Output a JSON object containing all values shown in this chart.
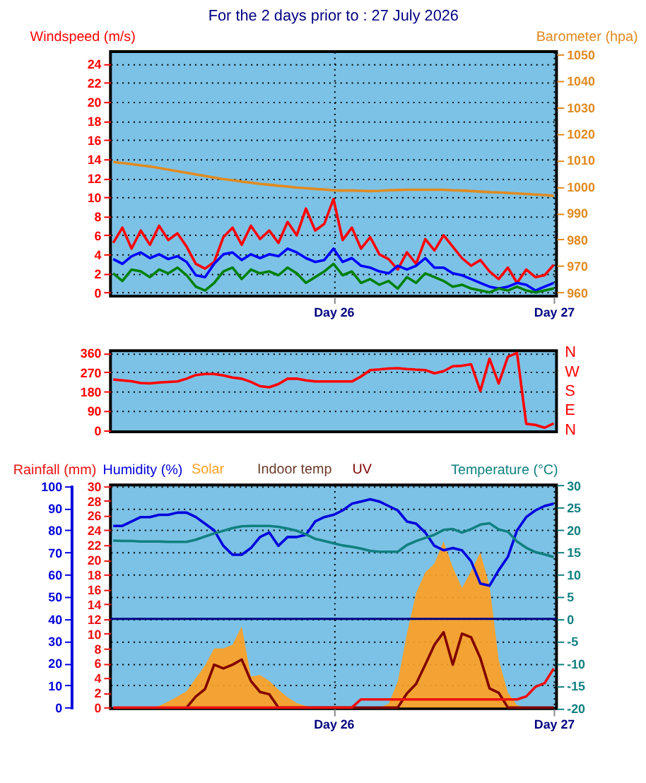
{
  "chart_data": [
    {
      "type": "line",
      "title": "For the 2 days prior to : 27 July 2026",
      "ylabel": "Windspeed (m/s)",
      "y2label": "Barometer (hpa)",
      "categories": [
        null,
        null,
        null,
        null,
        null,
        null,
        null,
        null,
        null,
        null,
        null,
        null,
        null,
        null,
        null,
        null,
        null,
        null,
        null,
        null,
        null,
        null,
        null,
        null,
        "Day 26",
        null,
        null,
        null,
        null,
        null,
        null,
        null,
        null,
        null,
        null,
        null,
        null,
        null,
        null,
        null,
        null,
        null,
        null,
        null,
        null,
        null,
        null,
        null,
        "Day 27"
      ],
      "ylim": [
        -0.4,
        25.3
      ],
      "yticks": [
        0,
        2,
        4,
        6,
        8,
        10,
        12,
        14,
        16,
        18,
        20,
        22,
        24
      ],
      "y2lim": [
        958.6,
        1051
      ],
      "y2ticks": [
        960,
        970,
        980,
        990,
        1000,
        1010,
        1020,
        1030,
        1040,
        1050
      ],
      "grid": true,
      "series": [
        {
          "color": "#ff0000",
          "values": [
            5.2,
            6.8,
            4.6,
            6.5,
            5.0,
            7.0,
            5.5,
            6.2,
            4.8,
            3.0,
            2.5,
            3.2,
            5.8,
            6.8,
            5.0,
            7.0,
            5.6,
            6.5,
            5.2,
            7.4,
            6.0,
            8.8,
            6.5,
            7.2,
            9.8,
            5.5,
            6.8,
            4.6,
            5.8,
            4.0,
            3.5,
            2.4,
            4.2,
            3.0,
            5.6,
            4.4,
            6.0,
            4.8,
            3.6,
            2.8,
            3.4,
            2.2,
            1.4,
            2.6,
            1.0,
            2.4,
            1.6,
            1.8,
            2.9
          ]
        },
        {
          "color": "#0000ff",
          "values": [
            3.5,
            3.0,
            3.8,
            4.2,
            3.6,
            4.0,
            3.5,
            3.8,
            3.2,
            1.8,
            1.6,
            3.0,
            4.0,
            4.2,
            3.4,
            4.0,
            3.6,
            4.0,
            3.8,
            4.6,
            4.2,
            3.6,
            3.2,
            3.4,
            4.6,
            3.2,
            3.6,
            2.8,
            2.6,
            2.2,
            2.0,
            2.8,
            2.4,
            2.8,
            3.6,
            2.6,
            2.6,
            2.0,
            1.8,
            1.4,
            1.0,
            0.6,
            0.4,
            0.6,
            1.0,
            0.8,
            0.2,
            0.6,
            1.0
          ]
        },
        {
          "color": "#008000",
          "values": [
            2.0,
            1.2,
            2.4,
            2.2,
            1.6,
            2.4,
            2.0,
            2.6,
            1.8,
            0.6,
            0.2,
            1.0,
            2.2,
            2.6,
            1.4,
            2.4,
            2.0,
            2.2,
            1.8,
            2.6,
            2.0,
            1.0,
            1.6,
            2.2,
            3.0,
            1.8,
            2.2,
            1.0,
            1.4,
            0.8,
            1.2,
            0.4,
            1.6,
            1.0,
            2.0,
            1.6,
            1.2,
            0.6,
            0.8,
            0.4,
            0.2,
            0.0,
            0.4,
            0.2,
            0.6,
            0.2,
            0.0,
            0.2,
            0.4
          ]
        },
        {
          "color": "#e08a20",
          "axis": "y2",
          "values": [
            1009.3,
            1008.9,
            1008.5,
            1008.0,
            1007.6,
            1007.0,
            1006.4,
            1005.8,
            1005.2,
            1004.6,
            1004.0,
            1003.4,
            1002.8,
            1002.4,
            1001.9,
            1001.5,
            1001.0,
            1000.7,
            1000.3,
            1000.0,
            999.6,
            999.4,
            999.1,
            998.9,
            998.6,
            998.5,
            998.5,
            998.4,
            998.3,
            998.4,
            998.6,
            998.7,
            998.8,
            998.8,
            998.8,
            998.8,
            998.8,
            998.6,
            998.5,
            998.3,
            998.1,
            997.9,
            997.8,
            997.6,
            997.4,
            997.2,
            997.0,
            996.8,
            996.5
          ]
        }
      ]
    },
    {
      "type": "line",
      "categories": [
        null,
        null,
        null,
        null,
        null,
        null,
        null,
        null,
        null,
        null,
        null,
        null,
        null,
        null,
        null,
        null,
        null,
        null,
        null,
        null,
        null,
        null,
        null,
        null,
        null,
        null,
        null,
        null,
        null,
        null,
        null,
        null,
        null,
        null,
        null,
        null,
        null,
        null,
        null,
        null,
        null,
        null,
        null,
        null,
        null,
        null,
        null,
        null,
        null
      ],
      "ylim": [
        -7,
        370
      ],
      "yticks": [
        0,
        90,
        180,
        270,
        360
      ],
      "annotations": [
        "N",
        "W",
        "S",
        "E",
        "N"
      ],
      "grid": "y",
      "tick_labels": "y",
      "series": [
        {
          "color": "#ff0000",
          "values": [
            236,
            232,
            228,
            220,
            218,
            222,
            225,
            227,
            240,
            257,
            262,
            262,
            255,
            245,
            240,
            225,
            205,
            200,
            215,
            240,
            240,
            232,
            227,
            227,
            227,
            227,
            227,
            250,
            280,
            283,
            287,
            289,
            285,
            282,
            280,
            265,
            275,
            298,
            300,
            307,
            183,
            333,
            218,
            342,
            360,
            30,
            25,
            12,
            32
          ]
        }
      ]
    },
    {
      "type": "line",
      "ylabel": "Humidity (%)",
      "y2label": "Temperature (°C)",
      "y3label": "Rainfall (mm)",
      "annotations": [
        "Indoor temp"
      ],
      "categories": [
        null,
        null,
        null,
        null,
        null,
        null,
        null,
        null,
        null,
        null,
        null,
        null,
        null,
        null,
        null,
        null,
        null,
        null,
        null,
        null,
        null,
        null,
        null,
        null,
        "Day 26",
        null,
        null,
        null,
        null,
        null,
        null,
        null,
        null,
        null,
        null,
        null,
        null,
        null,
        null,
        null,
        null,
        null,
        null,
        null,
        null,
        null,
        null,
        null,
        "Day 27"
      ],
      "ylim": [
        -0.5,
        100.5
      ],
      "yticks": [
        0,
        10,
        20,
        30,
        40,
        50,
        60,
        70,
        80,
        90,
        100
      ],
      "y2lim": [
        -20.15,
        30.1
      ],
      "y2ticks": [
        -20,
        -15,
        -10,
        -5,
        0,
        5,
        10,
        15,
        20,
        25,
        30
      ],
      "y3lim": [
        -0.15,
        30.15
      ],
      "y3ticks": [
        0,
        2,
        4,
        6,
        8,
        10,
        12,
        14,
        16,
        18,
        20,
        22,
        24,
        26,
        28,
        30
      ],
      "grid": true,
      "ref_lines": [
        {
          "axis": "y2",
          "value": 0,
          "color": "#000080"
        }
      ],
      "series": [
        {
          "name": "Solar",
          "type": "area",
          "axis": "y3",
          "color": "#ffa020",
          "values": [
            0,
            0,
            0,
            0,
            0,
            0.2,
            0.8,
            1.5,
            2.2,
            4.0,
            5.7,
            8.0,
            8.0,
            8.5,
            11.0,
            4.2,
            4.4,
            3.6,
            2.4,
            1.4,
            0.6,
            0.2,
            0,
            0,
            0,
            0,
            0,
            0,
            0,
            0,
            0.5,
            3.5,
            10.0,
            15.5,
            18.3,
            19.5,
            22.5,
            19.0,
            16.2,
            18.5,
            21.0,
            16.5,
            6.5,
            2.0,
            0.3,
            0,
            0,
            0,
            0
          ]
        },
        {
          "name": "UV",
          "axis": "y3",
          "color": "#800000",
          "values": [
            null,
            null,
            null,
            null,
            null,
            null,
            null,
            null,
            0,
            1.5,
            2.5,
            5.8,
            5.3,
            5.8,
            6.5,
            3.6,
            2.1,
            1.8,
            0,
            0,
            0,
            0,
            0,
            0,
            0,
            0,
            0,
            0,
            0,
            0,
            0,
            0,
            1.9,
            3.2,
            5.8,
            8.5,
            10.2,
            5.8,
            10.0,
            9.5,
            6.7,
            2.6,
            2.0,
            0,
            0,
            0,
            0,
            0,
            0
          ]
        },
        {
          "axis": "y3",
          "color": "#ee1010",
          "values": [
            0,
            0,
            0,
            0,
            0,
            0,
            0,
            0,
            0,
            0,
            0,
            0,
            0,
            0,
            0,
            0,
            0,
            0,
            0,
            0,
            0,
            0,
            0,
            0,
            0,
            0,
            0,
            1.1,
            1.1,
            1.1,
            1.1,
            1.1,
            1.1,
            1.1,
            1.1,
            1.1,
            1.1,
            1.1,
            1.1,
            1.1,
            1.1,
            1.1,
            1.1,
            1.1,
            1.1,
            1.5,
            2.8,
            3.3,
            5.3
          ]
        },
        {
          "color": "#0000dd",
          "values": [
            82,
            82,
            84,
            86,
            86,
            87,
            87,
            88,
            88,
            86,
            83,
            80,
            73,
            69,
            69,
            72,
            77,
            79,
            73,
            77,
            77,
            78,
            84,
            86,
            87,
            89,
            92,
            93,
            94,
            93,
            91,
            89,
            84,
            83,
            79,
            73,
            71,
            72,
            71,
            66,
            56,
            55,
            62,
            68,
            80,
            86,
            89,
            91,
            92
          ]
        },
        {
          "axis": "y2",
          "color": "#108080",
          "values": [
            17.6,
            17.5,
            17.5,
            17.4,
            17.4,
            17.4,
            17.3,
            17.3,
            17.3,
            17.8,
            18.5,
            19.2,
            19.8,
            20.4,
            20.8,
            20.9,
            20.9,
            20.9,
            20.7,
            20.3,
            19.8,
            19.0,
            18.0,
            17.5,
            17.0,
            16.5,
            16.2,
            15.8,
            15.3,
            15.1,
            15.1,
            15.1,
            16.6,
            17.5,
            18.2,
            18.9,
            20.0,
            20.2,
            19.4,
            20.2,
            21.2,
            21.5,
            20.1,
            19.6,
            17.4,
            16.0,
            15.0,
            14.5,
            13.9
          ]
        }
      ]
    }
  ]
}
